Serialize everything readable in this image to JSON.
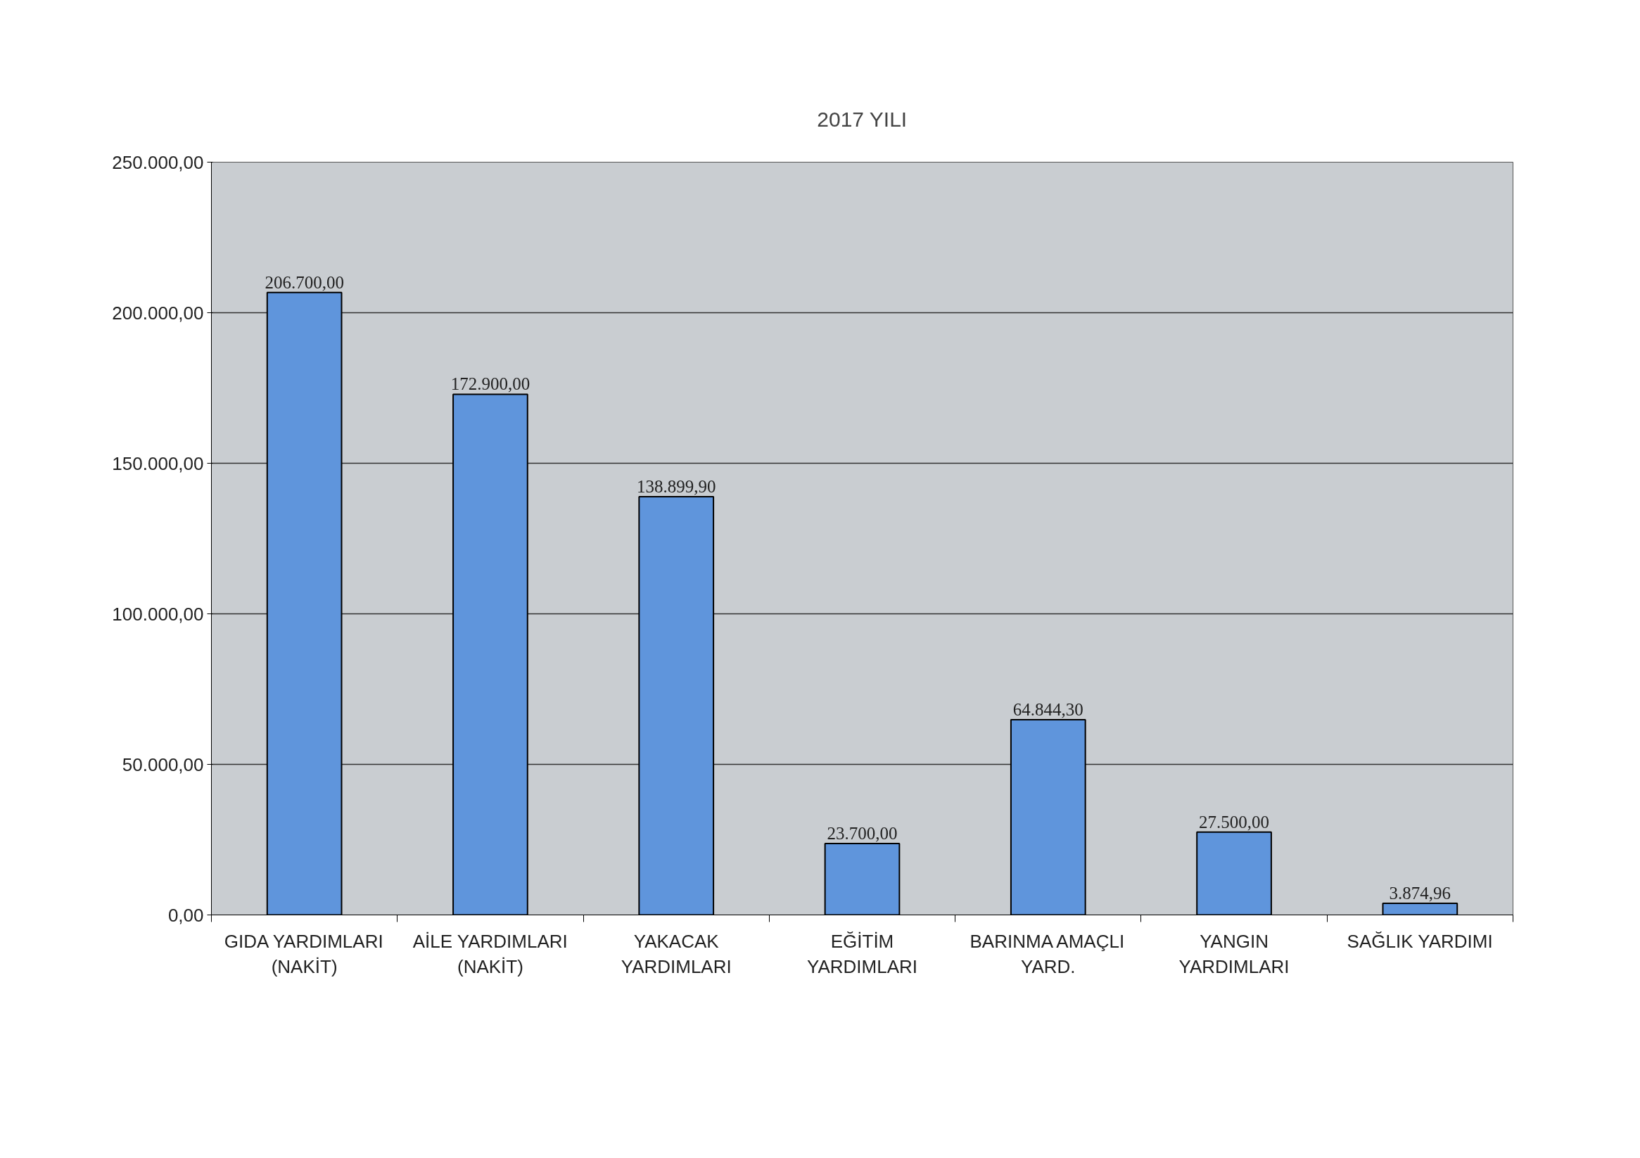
{
  "chart_data": {
    "type": "bar",
    "title": "2017 YILI",
    "categories": [
      "GIDA YARDIMLARI\n(NAKİT)",
      "AİLE YARDIMLARI\n(NAKİT)",
      "YAKACAK\nYARDIMLARI",
      "EĞİTİM\nYARDIMLARI",
      "BARINMA AMAÇLI\nYARD.",
      "YANGIN\nYARDIMLARI",
      "SAĞLIK YARDIMI"
    ],
    "values": [
      206700,
      172900,
      138899.9,
      23700,
      64844.3,
      27500,
      3874.96
    ],
    "value_labels": [
      "206.700,00",
      "172.900,00",
      "138.899,90",
      "23.700,00",
      "64.844,30",
      "27.500,00",
      "3.874,96"
    ],
    "color": "#5f95dc",
    "ylim": [
      0,
      250000
    ],
    "yticks": [
      {
        "value": 0,
        "label": "0,00"
      },
      {
        "value": 50000,
        "label": "50.000,00"
      },
      {
        "value": 100000,
        "label": "100.000,00"
      },
      {
        "value": 150000,
        "label": "150.000,00"
      },
      {
        "value": 200000,
        "label": "200.000,00"
      },
      {
        "value": 250000,
        "label": "250.000,00"
      }
    ],
    "grid": "y"
  }
}
